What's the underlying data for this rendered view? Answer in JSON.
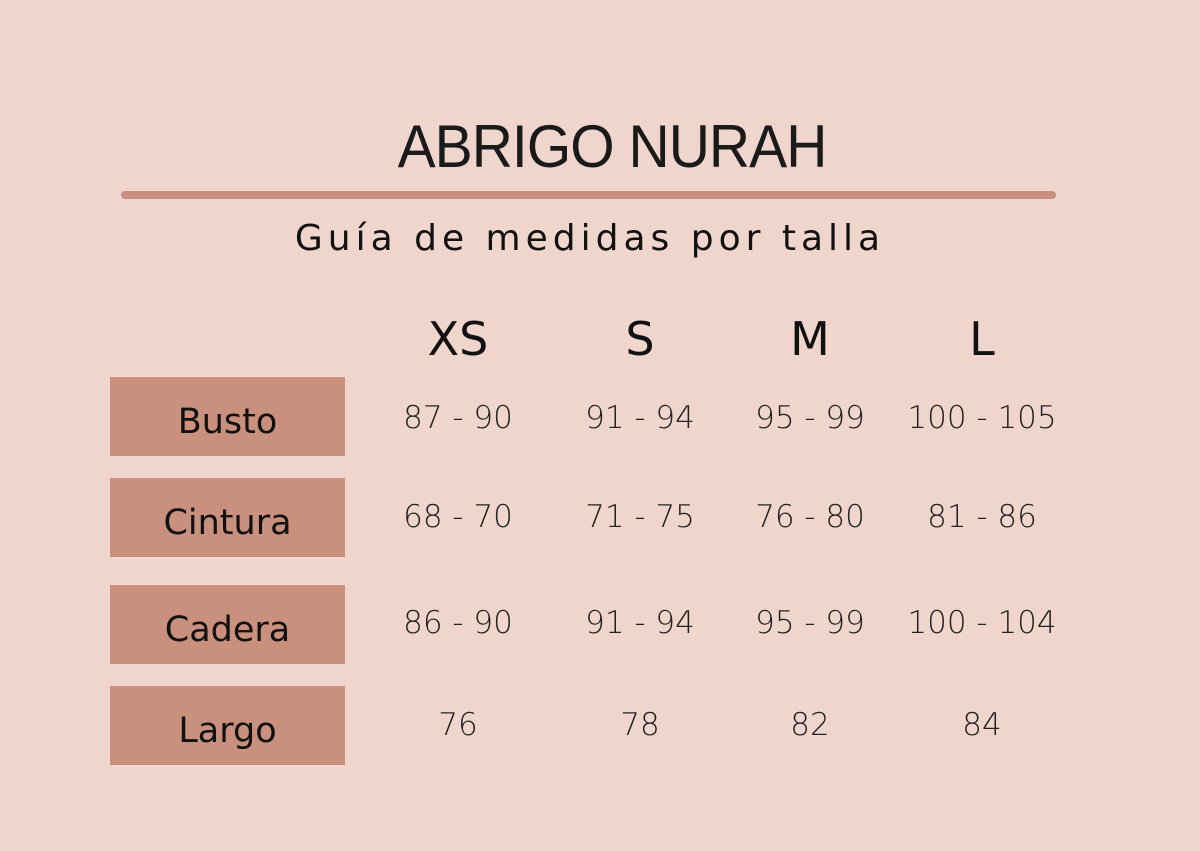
{
  "title": "ABRIGO NURAH",
  "subtitle": "Guía de medidas por talla",
  "colors": {
    "background": "#efd5cc",
    "accent": "#c98f7e",
    "label_box": "#c9907e"
  },
  "sizes": [
    "XS",
    "S",
    "M",
    "L"
  ],
  "rows": [
    {
      "label": "Busto",
      "values": [
        "87 -  90",
        "91 - 94",
        "95 - 99",
        "100 - 105"
      ]
    },
    {
      "label": "Cintura",
      "values": [
        "68 - 70",
        "71 - 75",
        "76 - 80",
        "81 - 86"
      ]
    },
    {
      "label": "Cadera",
      "values": [
        "86 - 90",
        "91 - 94",
        "95 - 99",
        "100 - 104"
      ]
    },
    {
      "label": "Largo",
      "values": [
        "76",
        "78",
        "82",
        "84"
      ]
    }
  ]
}
